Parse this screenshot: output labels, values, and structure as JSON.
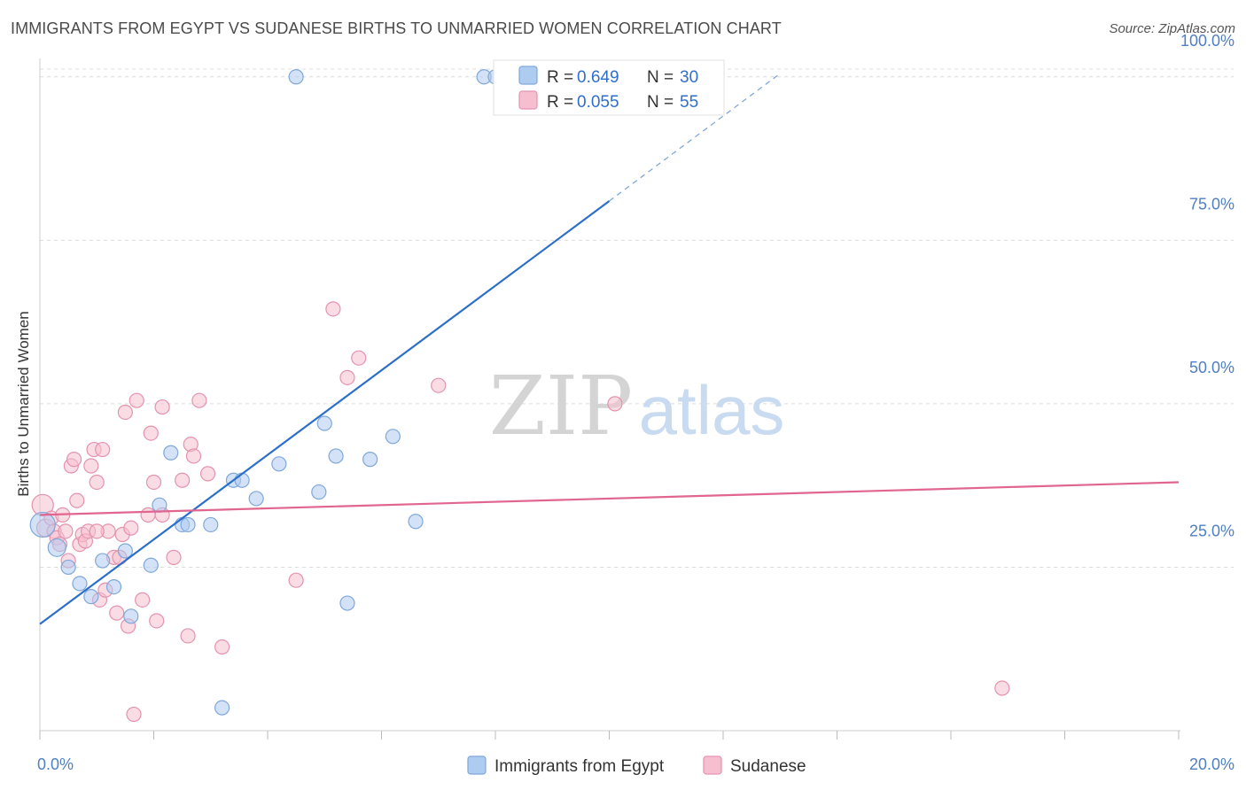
{
  "title": "IMMIGRANTS FROM EGYPT VS SUDANESE BIRTHS TO UNMARRIED WOMEN CORRELATION CHART",
  "source": "Source: ZipAtlas.com",
  "watermark": {
    "zip": "ZIP",
    "atlas": "atlas"
  },
  "colors": {
    "egypt_fill": "#aecbf0",
    "egypt_stroke": "#7fa8d9",
    "egypt_line": "#2c6fca",
    "sudanese_fill": "#f5bfd0",
    "sudanese_stroke": "#e493ae",
    "sudanese_line": "#e0668f",
    "axis_label": "#4f7fc4",
    "grid": "#dcdcdc"
  },
  "legend": {
    "rows": [
      {
        "r_label": "R = ",
        "r_value": "0.649",
        "n_label": "N = ",
        "n_value": "30"
      },
      {
        "r_label": "R = ",
        "r_value": "0.055",
        "n_label": "N = ",
        "n_value": "55"
      }
    ],
    "bottom": [
      "Immigrants from Egypt",
      "Sudanese"
    ]
  },
  "chart_data": {
    "type": "scatter",
    "title": "IMMIGRANTS FROM EGYPT VS SUDANESE BIRTHS TO UNMARRIED WOMEN CORRELATION CHART",
    "xlabel": "",
    "ylabel": "Births to Unmarried Women",
    "xlim": [
      0,
      20
    ],
    "ylim": [
      0,
      102
    ],
    "x_ticks": [
      0,
      2,
      4,
      6,
      8,
      10,
      12,
      14,
      16,
      18,
      20
    ],
    "x_tick_labels": {
      "0": "0.0%",
      "20": "20.0%"
    },
    "y_ticks": [
      25,
      50,
      75,
      100
    ],
    "y_tick_labels": [
      "25.0%",
      "50.0%",
      "75.0%",
      "100.0%"
    ],
    "grid": true,
    "legend_position": "top-center",
    "series": [
      {
        "name": "Immigrants from Egypt",
        "trend": {
          "x": [
            0,
            10
          ],
          "y": [
            16.3,
            81.0
          ],
          "dashed_extension_to": [
            13.0,
            100.5
          ]
        },
        "points": [
          [
            0.05,
            31.5,
            14
          ],
          [
            0.3,
            28,
            10
          ],
          [
            0.5,
            25,
            8
          ],
          [
            0.7,
            22.5,
            8
          ],
          [
            0.9,
            20.5,
            8
          ],
          [
            1.1,
            26,
            8
          ],
          [
            1.3,
            22,
            8
          ],
          [
            1.5,
            27.5,
            8
          ],
          [
            1.6,
            17.5,
            8
          ],
          [
            1.95,
            25.3,
            8
          ],
          [
            2.1,
            34.5,
            8
          ],
          [
            2.3,
            42.5,
            8
          ],
          [
            2.5,
            31.5,
            8
          ],
          [
            2.6,
            31.5,
            8
          ],
          [
            3.0,
            31.5,
            8
          ],
          [
            3.4,
            38.3,
            8
          ],
          [
            3.55,
            38.3,
            8
          ],
          [
            3.8,
            35.5,
            8
          ],
          [
            4.2,
            40.8,
            8
          ],
          [
            4.5,
            100,
            8
          ],
          [
            4.9,
            36.5,
            8
          ],
          [
            5.0,
            47,
            8
          ],
          [
            5.2,
            42,
            8
          ],
          [
            5.4,
            19.5,
            8
          ],
          [
            5.8,
            41.5,
            8
          ],
          [
            6.2,
            45,
            8
          ],
          [
            6.6,
            32,
            8
          ],
          [
            7.8,
            100,
            8
          ],
          [
            8.0,
            100,
            8
          ],
          [
            3.2,
            3.5,
            8
          ]
        ]
      },
      {
        "name": "Sudanese",
        "trend": {
          "x": [
            0,
            20
          ],
          "y": [
            33.0,
            38.0
          ]
        },
        "points": [
          [
            0.05,
            34.5,
            12
          ],
          [
            0.1,
            31,
            10
          ],
          [
            0.2,
            32.5,
            8
          ],
          [
            0.25,
            30.5,
            8
          ],
          [
            0.3,
            29.5,
            8
          ],
          [
            0.4,
            33,
            8
          ],
          [
            0.45,
            30.5,
            8
          ],
          [
            0.5,
            26,
            8
          ],
          [
            0.55,
            40.5,
            8
          ],
          [
            0.6,
            41.5,
            8
          ],
          [
            0.65,
            35.2,
            8
          ],
          [
            0.7,
            28.5,
            8
          ],
          [
            0.75,
            30,
            8
          ],
          [
            0.8,
            29,
            8
          ],
          [
            0.85,
            30.5,
            8
          ],
          [
            0.9,
            40.5,
            8
          ],
          [
            0.95,
            43,
            8
          ],
          [
            1.0,
            38,
            8
          ],
          [
            1.05,
            20,
            8
          ],
          [
            1.1,
            43,
            8
          ],
          [
            1.15,
            21.5,
            8
          ],
          [
            1.2,
            30.5,
            8
          ],
          [
            1.3,
            26.5,
            8
          ],
          [
            1.35,
            18,
            8
          ],
          [
            1.4,
            26.5,
            8
          ],
          [
            1.45,
            30,
            8
          ],
          [
            1.5,
            48.7,
            8
          ],
          [
            1.55,
            16,
            8
          ],
          [
            1.6,
            31,
            8
          ],
          [
            1.7,
            50.5,
            8
          ],
          [
            1.8,
            20,
            8
          ],
          [
            1.9,
            33,
            8
          ],
          [
            1.95,
            45.5,
            8
          ],
          [
            2.0,
            38,
            8
          ],
          [
            2.05,
            16.8,
            8
          ],
          [
            2.15,
            49.5,
            8
          ],
          [
            2.35,
            26.5,
            8
          ],
          [
            2.5,
            38.3,
            8
          ],
          [
            2.6,
            14.5,
            8
          ],
          [
            2.65,
            43.8,
            8
          ],
          [
            2.7,
            42,
            8
          ],
          [
            2.8,
            50.5,
            8
          ],
          [
            2.95,
            39.3,
            8
          ],
          [
            3.2,
            12.8,
            8
          ],
          [
            4.5,
            23,
            8
          ],
          [
            5.15,
            64.5,
            8
          ],
          [
            5.4,
            54,
            8
          ],
          [
            5.6,
            57,
            8
          ],
          [
            7.0,
            52.8,
            8
          ],
          [
            10.1,
            50,
            8
          ],
          [
            16.9,
            6.5,
            8
          ],
          [
            1.65,
            2.5,
            8
          ],
          [
            2.15,
            33,
            8
          ],
          [
            0.35,
            28.5,
            8
          ],
          [
            1.0,
            30.5,
            8
          ]
        ]
      }
    ]
  }
}
